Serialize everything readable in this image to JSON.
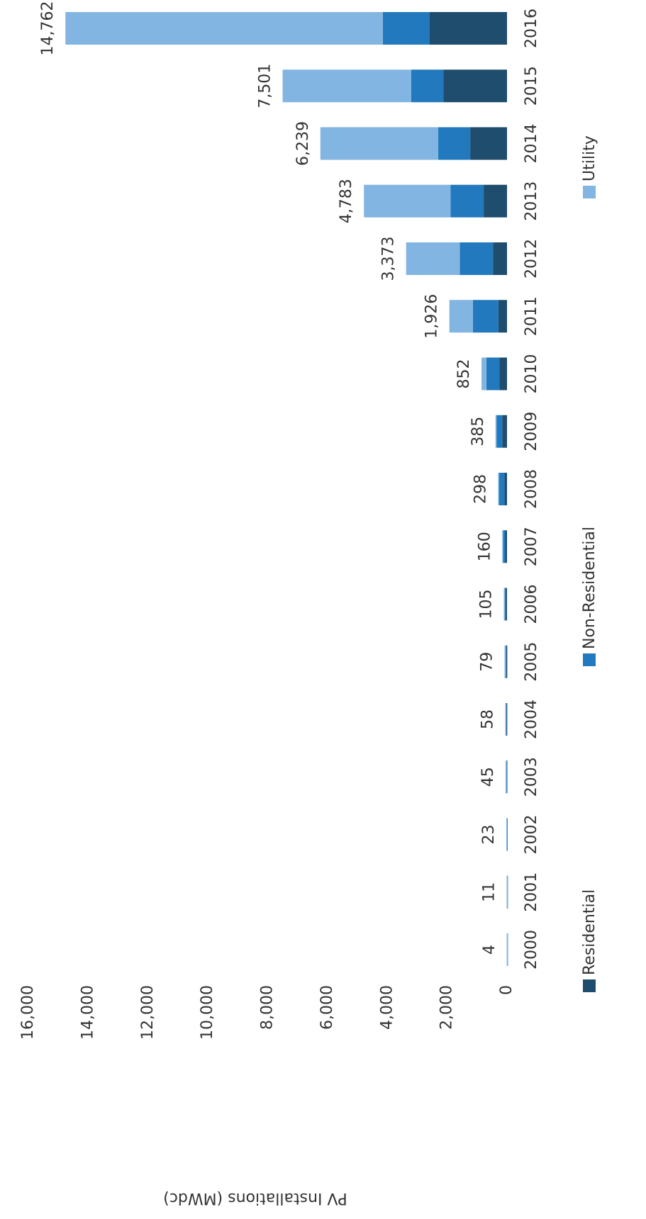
{
  "chart_data": {
    "type": "stacked_bar",
    "ylabel": "PV Installations (MWdc)",
    "categories": [
      "2000",
      "2001",
      "2002",
      "2003",
      "2004",
      "2005",
      "2006",
      "2007",
      "2008",
      "2009",
      "2010",
      "2011",
      "2012",
      "2013",
      "2014",
      "2015",
      "2016"
    ],
    "series": [
      {
        "name": "Residential",
        "color": "#1e4d6e",
        "values": [
          2,
          5,
          12,
          25,
          28,
          28,
          45,
          60,
          85,
          160,
          250,
          290,
          470,
          780,
          1230,
          2130,
          2600
        ]
      },
      {
        "name": "Non-Residential",
        "color": "#2279bd",
        "values": [
          2,
          6,
          10,
          19,
          28,
          48,
          55,
          90,
          190,
          190,
          440,
          850,
          1110,
          1110,
          1070,
          1070,
          1550
        ]
      },
      {
        "name": "Utility",
        "color": "#82b5e1",
        "values": [
          0,
          0,
          1,
          1,
          2,
          3,
          5,
          10,
          23,
          35,
          162,
          786,
          1793,
          2893,
          3939,
          4301,
          10612
        ]
      }
    ],
    "totals": [
      4,
      11,
      23,
      45,
      58,
      79,
      105,
      160,
      298,
      385,
      852,
      1926,
      3373,
      4783,
      6239,
      7501,
      14762
    ],
    "total_labels": [
      "4",
      "11",
      "23",
      "45",
      "58",
      "79",
      "105",
      "160",
      "298",
      "385",
      "852",
      "1,926",
      "3,373",
      "4,783",
      "6,239",
      "7,501",
      "14,762"
    ],
    "ylim": [
      0,
      16000
    ],
    "yticks": [
      0,
      {
        "value": 2000,
        "label": "2,000"
      },
      {
        "value": 4000,
        "label": "4,000"
      },
      {
        "value": 6000,
        "label": "6,000"
      },
      {
        "value": 8000,
        "label": "8,000"
      },
      {
        "value": 10000,
        "label": "10,000"
      },
      {
        "value": 12000,
        "label": "12,000"
      },
      {
        "value": 14000,
        "label": "14,000"
      },
      {
        "value": 16000,
        "label": "16,000"
      }
    ],
    "grid": false,
    "legend": "bottom"
  }
}
